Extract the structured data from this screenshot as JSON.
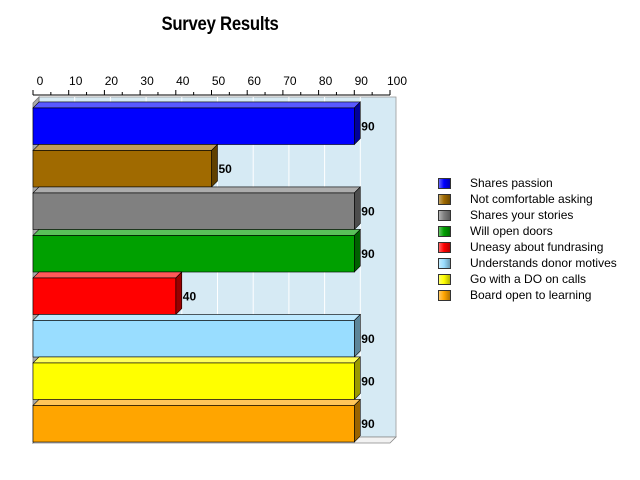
{
  "chart_data": {
    "type": "bar",
    "orientation": "horizontal",
    "title": "Survey Results",
    "xlabel": "",
    "ylabel": "",
    "xlim": [
      0,
      100
    ],
    "ticks": [
      "0",
      "10",
      "20",
      "30",
      "40",
      "50",
      "60",
      "70",
      "80",
      "90",
      "100"
    ],
    "grid": true,
    "legend_position": "right",
    "categories": [
      "Shares passion",
      "Not comfortable asking",
      "Shares your stories",
      "Will open doors",
      "Uneasy about fundrasing",
      "Understands donor motives",
      "Go with a DO on calls",
      "Board open to learning"
    ],
    "values": [
      90,
      50,
      90,
      90,
      40,
      90,
      90,
      90
    ],
    "data_labels": [
      "90",
      "50",
      "90",
      "90",
      "40",
      "90",
      "90",
      "90"
    ],
    "colors": [
      "#0000ff",
      "#a06a00",
      "#808080",
      "#00a000",
      "#ff0000",
      "#99ddff",
      "#ffff00",
      "#ffa500"
    ],
    "plot_background": "#d6eaf4"
  }
}
